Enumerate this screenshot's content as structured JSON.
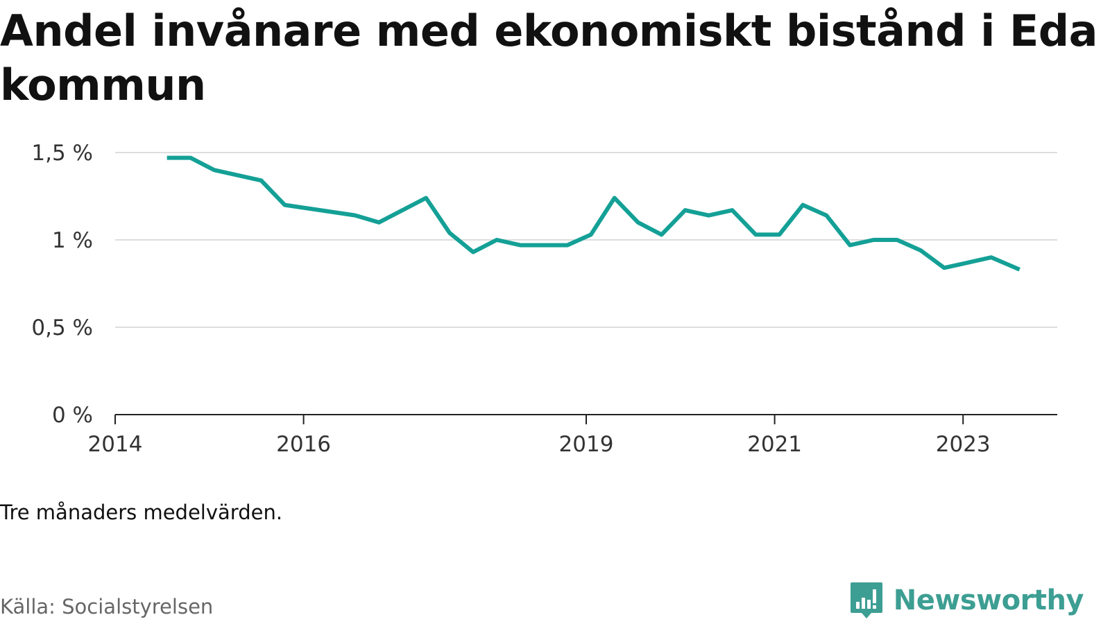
{
  "title": "Andel invånare med ekonomiskt bistånd i Eda kommun",
  "note": "Tre månaders medelvärden.",
  "source": "Källa: Socialstyrelsen",
  "brand": {
    "name": "Newsworthy",
    "icon": "newsworthy-logo-icon",
    "color": "#3d9e93"
  },
  "chart_data": {
    "type": "line",
    "title": "",
    "xlabel": "",
    "ylabel": "",
    "x_range": [
      2014,
      2024.0
    ],
    "ylim": [
      0,
      1.5
    ],
    "grid": true,
    "legend": "none",
    "line_color": "#14a096",
    "y_ticks": [
      {
        "value": 0,
        "label": "0 %"
      },
      {
        "value": 0.5,
        "label": "0,5 %"
      },
      {
        "value": 1,
        "label": "1 %"
      },
      {
        "value": 1.5,
        "label": "1,5 %"
      }
    ],
    "x_ticks": [
      {
        "value": 2014,
        "label": "2014"
      },
      {
        "value": 2016,
        "label": "2016"
      },
      {
        "value": 2019,
        "label": "2019"
      },
      {
        "value": 2021,
        "label": "2021"
      },
      {
        "value": 2023,
        "label": "2023"
      }
    ],
    "series": [
      {
        "x": [
          2014.55,
          2014.8,
          2015.05,
          2015.55,
          2015.8,
          2016.05,
          2016.55,
          2016.8,
          2017.3,
          2017.55,
          2017.8,
          2018.05,
          2018.3,
          2018.55,
          2018.8,
          2019.05,
          2019.3,
          2019.55,
          2019.8,
          2020.05,
          2020.3,
          2020.55,
          2020.8,
          2021.05,
          2021.3,
          2021.55,
          2021.8,
          2022.05,
          2022.3,
          2022.55,
          2022.8,
          2023.05,
          2023.3,
          2023.6
        ],
        "y": [
          1.47,
          1.47,
          1.4,
          1.34,
          1.2,
          1.18,
          1.14,
          1.1,
          1.24,
          1.04,
          0.93,
          1.0,
          0.97,
          0.97,
          0.97,
          1.03,
          1.24,
          1.1,
          1.03,
          1.17,
          1.14,
          1.17,
          1.03,
          1.03,
          1.2,
          1.14,
          0.97,
          1.0,
          1.0,
          0.94,
          0.84,
          0.87,
          0.9,
          0.83
        ]
      }
    ]
  }
}
